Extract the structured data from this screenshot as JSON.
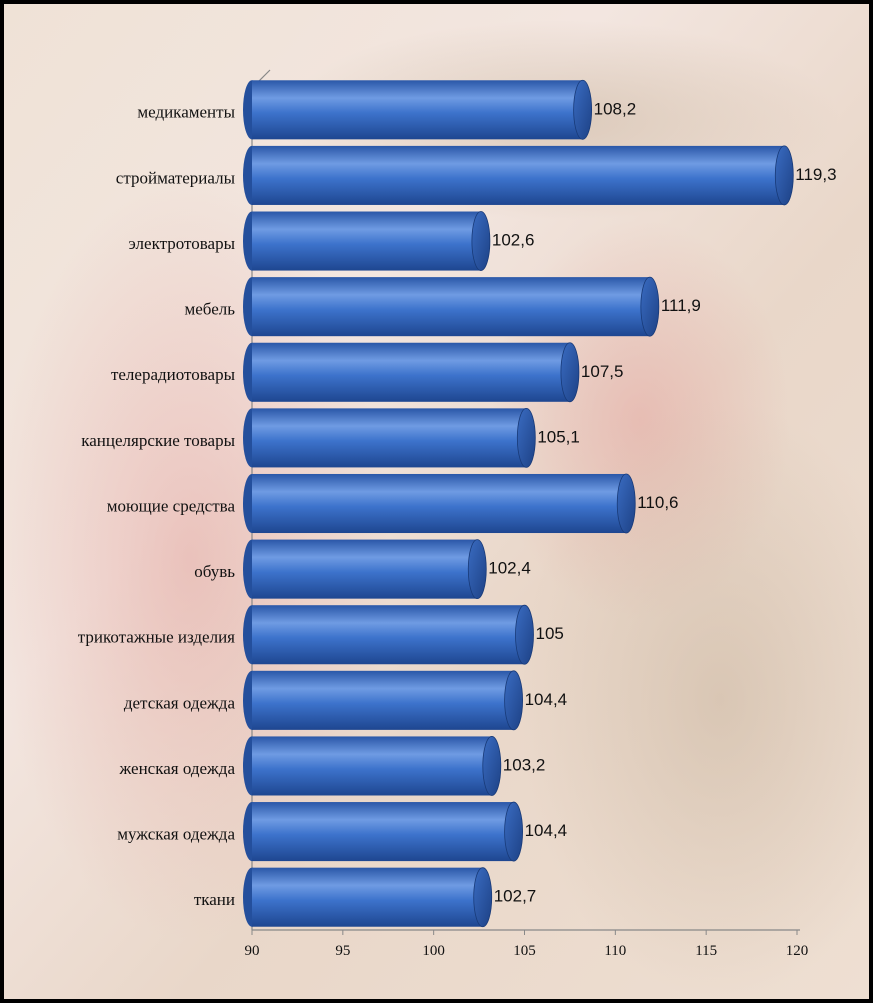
{
  "chart_data": {
    "type": "bar",
    "categories": [
      "медикаменты",
      "стройматериалы",
      "электротовары",
      "мебель",
      "телерадиотовары",
      "канцелярские  товары",
      "моющие средства",
      "обувь",
      "трикотажные  изделия",
      "детская одежда",
      "женская одежда",
      "мужская одежда",
      "ткани"
    ],
    "values": [
      108.2,
      119.3,
      102.6,
      111.9,
      107.5,
      105.1,
      110.6,
      102.4,
      105,
      104.4,
      103.2,
      104.4,
      102.7
    ],
    "value_labels": [
      "108,2",
      "119,3",
      "102,6",
      "111,9",
      "107,5",
      "105,1",
      "110,6",
      "102,4",
      "105",
      "104,4",
      "103,2",
      "104,4",
      "102,7"
    ],
    "color": "#3a6fc8",
    "xlim": [
      90,
      120
    ],
    "xticks": [
      90,
      95,
      100,
      105,
      110,
      115,
      120
    ]
  }
}
